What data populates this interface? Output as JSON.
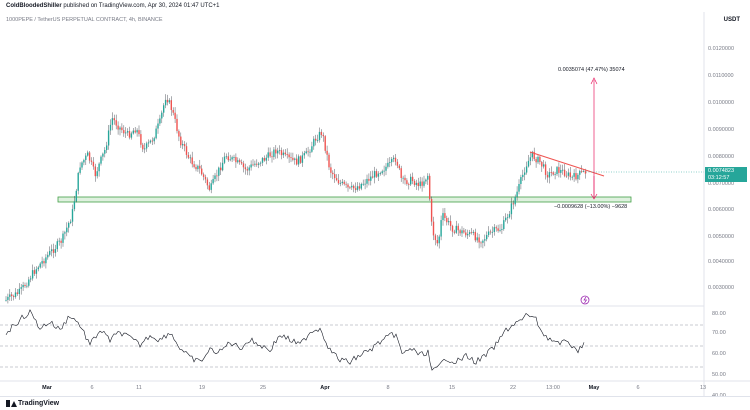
{
  "header": {
    "author": "ColdBloodedShiller",
    "published": "published on TradingView.com, Apr 30, 2024 01:47 UTC+1"
  },
  "symbol": "1000PEPE / TetherUS PERPETUAL CONTRACT, 4h, BINANCE",
  "currency": "USDT",
  "price_axis": [
    "0.0120000",
    "0.0110000",
    "0.0100000",
    "0.0090000",
    "0.0080000",
    "0.0070000",
    "0.0060000",
    "0.0050000",
    "0.0040000",
    "0.0030000"
  ],
  "rsi_axis": [
    "80.00",
    "70.00",
    "60.00",
    "50.00",
    "40.00"
  ],
  "last_price": {
    "price": "0.0074823",
    "countdown": "03:12:57"
  },
  "time_axis": [
    {
      "label": "Mar",
      "bold": true
    },
    {
      "label": "6",
      "bold": false
    },
    {
      "label": "11",
      "bold": false
    },
    {
      "label": "19",
      "bold": false
    },
    {
      "label": "25",
      "bold": false
    },
    {
      "label": "Apr",
      "bold": true
    },
    {
      "label": "8",
      "bold": false
    },
    {
      "label": "15",
      "bold": false
    },
    {
      "label": "22",
      "bold": false
    },
    {
      "label": "13:00",
      "bold": false
    },
    {
      "label": "May",
      "bold": true
    },
    {
      "label": "6",
      "bold": false
    },
    {
      "label": "13",
      "bold": false
    }
  ],
  "annotations": {
    "up_measure": "0.0035074 (47.47%) 35074",
    "down_measure": "−0.0009628 (−13.00%) −9628"
  },
  "footer": {
    "brand": "TradingView"
  },
  "colors": {
    "up": "#26a69a",
    "down": "#ef5350",
    "wick": "#131722",
    "support": "#43a047",
    "measure": "#e91e63",
    "rsi": "#131722"
  }
}
